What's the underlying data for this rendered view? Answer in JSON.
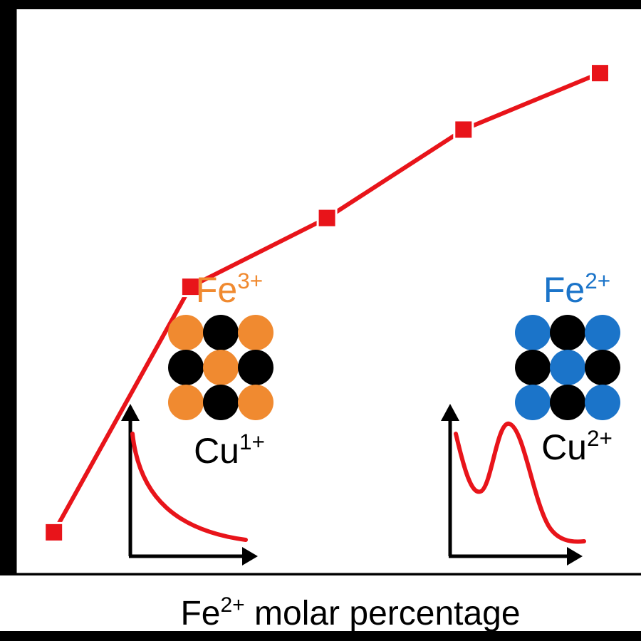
{
  "chart_data": {
    "type": "line",
    "xlabel": {
      "prefix": "Fe",
      "superscript": "2+",
      "suffix": " molar percentage"
    },
    "ylabel": "",
    "x": [
      0,
      1,
      2,
      3,
      4
    ],
    "y": [
      0.0,
      1.0,
      1.28,
      1.64,
      1.87
    ],
    "xlim": [
      -0.28,
      4.3
    ],
    "ylim": [
      -0.17,
      2.13
    ],
    "axis_ticks": "none",
    "grid": false,
    "series": [
      {
        "color": "#e8141a",
        "marker": "square"
      }
    ],
    "annotations": [
      {
        "position": "left",
        "ion": {
          "symbol": "Fe",
          "charge": "3+",
          "color": "#f08a30"
        },
        "counter_ion": {
          "symbol": "Cu",
          "charge": "1+",
          "color": "#000000"
        },
        "lattice": [
          [
            "ion",
            "counter",
            "ion"
          ],
          [
            "counter",
            "ion",
            "counter"
          ],
          [
            "ion",
            "counter",
            "ion"
          ]
        ],
        "inset_curve": "decay"
      },
      {
        "position": "right",
        "ion": {
          "symbol": "Fe",
          "charge": "2+",
          "color": "#1b74c9"
        },
        "counter_ion": {
          "symbol": "Cu",
          "charge": "2+",
          "color": "#000000"
        },
        "lattice": [
          [
            "ion",
            "counter",
            "ion"
          ],
          [
            "counter",
            "ion",
            "counter"
          ],
          [
            "ion",
            "counter",
            "ion"
          ]
        ],
        "inset_curve": "double-peak"
      }
    ]
  }
}
